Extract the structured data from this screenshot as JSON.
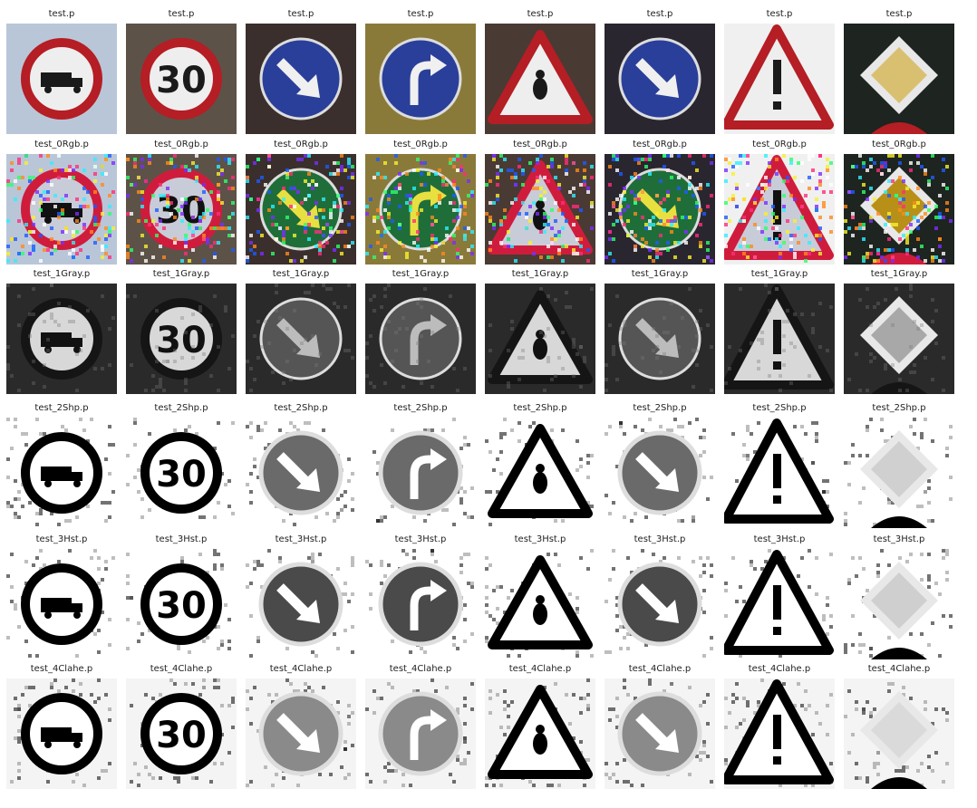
{
  "figure": {
    "rows": [
      {
        "label": "test.p",
        "mode": "color"
      },
      {
        "label": "test_0Rgb.p",
        "mode": "noise"
      },
      {
        "label": "test_1Gray.p",
        "mode": "gray"
      },
      {
        "label": "test_2Shp.p",
        "mode": "sharp"
      },
      {
        "label": "test_3Hst.p",
        "mode": "hist"
      },
      {
        "label": "test_4Clahe.p",
        "mode": "clahe"
      }
    ],
    "signs": [
      {
        "type": "no-trucks",
        "bg": "#b9c6d8"
      },
      {
        "type": "speed-30",
        "bg": "#5d5248"
      },
      {
        "type": "keep-right",
        "bg": "#3a2f2c"
      },
      {
        "type": "turn-right-ahead",
        "bg": "#8a7a3a"
      },
      {
        "type": "warning-triangle",
        "bg": "#4a3a34"
      },
      {
        "type": "keep-right",
        "bg": "#2a2630"
      },
      {
        "type": "general-caution",
        "bg": "#f0f0f0"
      },
      {
        "type": "priority-road",
        "bg": "#1e2420"
      }
    ]
  }
}
